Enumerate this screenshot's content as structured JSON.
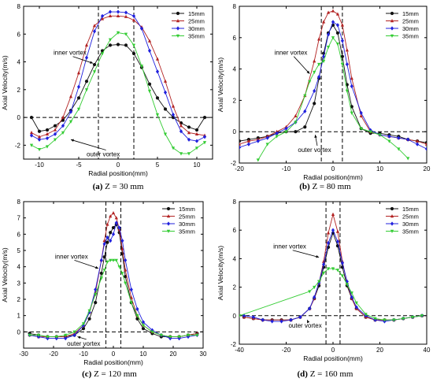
{
  "colors": {
    "15mm": "#111111",
    "25mm": "#b22222",
    "30mm": "#2020dd",
    "35mm": "#33cc33"
  },
  "chart_data": [
    {
      "type": "line",
      "caption_letter": "(a)",
      "caption_rest": " Z = 30 mm",
      "xlabel": "Radial position(mm)",
      "ylabel": "Axial Velocity(m/s)",
      "xlim": [
        -12,
        12
      ],
      "ylim": [
        -3,
        8
      ],
      "xticks": [
        -10,
        -5,
        0,
        5,
        10
      ],
      "yticks": [
        -2,
        0,
        2,
        4,
        6,
        8
      ],
      "vlines": [
        -2.5,
        2
      ],
      "legend": "top-right",
      "annotations": [
        {
          "text": "inner vortex",
          "x": -8.2,
          "y": 4.5,
          "ax": -3.2,
          "ay": 3.9
        },
        {
          "text": "outer vortex",
          "x": -4.0,
          "y": -2.8,
          "ax": -6.0,
          "ay": -1.6
        }
      ],
      "series": [
        {
          "name": "15mm",
          "marker": "circle",
          "x": [
            -11,
            -10,
            -9,
            -8,
            -7,
            -6,
            -5,
            -4,
            -3,
            -2,
            -1,
            0,
            1,
            2,
            3,
            4,
            5,
            6,
            7,
            8,
            9,
            10,
            11
          ],
          "y": [
            0,
            -1.0,
            -0.9,
            -0.6,
            -0.2,
            0.5,
            1.4,
            2.6,
            3.8,
            4.8,
            5.2,
            5.25,
            5.2,
            4.6,
            3.6,
            2.4,
            1.4,
            0.6,
            0.0,
            -0.4,
            -0.7,
            -0.9,
            0
          ]
        },
        {
          "name": "25mm",
          "marker": "triangle",
          "x": [
            -11,
            -10,
            -9,
            -8,
            -7,
            -6,
            -5,
            -4,
            -3,
            -2,
            -1,
            0,
            1,
            2,
            3,
            4,
            5,
            6,
            7,
            8,
            9,
            10,
            11
          ],
          "y": [
            -1.1,
            -1.4,
            -1.2,
            -0.9,
            0.0,
            1.5,
            3.2,
            5.2,
            6.6,
            7.1,
            7.3,
            7.3,
            7.25,
            7.0,
            6.5,
            5.5,
            4.2,
            2.6,
            0.8,
            -0.6,
            -1.1,
            -1.2,
            -1.3
          ]
        },
        {
          "name": "30mm",
          "marker": "diamond",
          "x": [
            -11,
            -10,
            -9,
            -8,
            -7,
            -6,
            -5,
            -4,
            -3,
            -2,
            -1,
            0,
            1,
            2,
            3,
            4,
            5,
            6,
            7,
            8,
            9,
            10,
            11
          ],
          "y": [
            -1.3,
            -1.6,
            -1.5,
            -1.2,
            -0.6,
            0.4,
            2.2,
            4.3,
            6.2,
            7.3,
            7.6,
            7.6,
            7.55,
            7.3,
            6.4,
            4.8,
            3.3,
            1.8,
            0.2,
            -1.0,
            -1.6,
            -1.7,
            -1.4
          ]
        },
        {
          "name": "35mm",
          "marker": "triangle-down",
          "x": [
            -11,
            -10,
            -9,
            -8,
            -7,
            -6,
            -5,
            -4,
            -3,
            -2,
            -1,
            0,
            1,
            2,
            3,
            4,
            5,
            6,
            7,
            8,
            9,
            10,
            11
          ],
          "y": [
            -2.0,
            -2.3,
            -2.1,
            -1.6,
            -1.1,
            -0.3,
            0.6,
            2.0,
            3.3,
            4.6,
            5.6,
            6.1,
            6.0,
            5.2,
            3.7,
            1.9,
            0.2,
            -1.2,
            -2.2,
            -2.6,
            -2.6,
            -2.2,
            -1.8
          ]
        }
      ]
    },
    {
      "type": "line",
      "caption_letter": "(b)",
      "caption_rest": " Z = 80 mm",
      "xlabel": "Radial position(mm)",
      "ylabel": "Axial Velocity(m/s)",
      "xlim": [
        -20,
        20
      ],
      "ylim": [
        -2,
        8
      ],
      "xticks": [
        -20,
        -10,
        0,
        10,
        20
      ],
      "yticks": [
        -2,
        0,
        2,
        4,
        6,
        8
      ],
      "vlines": [
        -2.5,
        2
      ],
      "legend": "top-right",
      "annotations": [
        {
          "text": "inner vortex",
          "x": -12.5,
          "y": 4.9,
          "ax": -5.0,
          "ay": 3.7
        },
        {
          "text": "outer vortex",
          "x": -7.5,
          "y": -1.3,
          "ax": -3.8,
          "ay": -0.2
        }
      ],
      "series": [
        {
          "name": "15mm",
          "marker": "circle",
          "x": [
            -20,
            -18,
            -16,
            -14,
            -12,
            -10,
            -8,
            -6,
            -4,
            -3,
            -2,
            -1,
            0,
            1,
            2,
            3,
            4,
            6,
            8,
            10,
            12,
            14,
            16,
            18,
            20
          ],
          "y": [
            -0.6,
            -0.5,
            -0.4,
            -0.3,
            -0.1,
            0.0,
            0.0,
            0.3,
            1.8,
            3.4,
            5.0,
            6.3,
            6.8,
            6.3,
            4.8,
            3.0,
            1.6,
            0.2,
            -0.1,
            -0.1,
            -0.2,
            -0.3,
            -0.5,
            -0.6,
            -0.7
          ]
        },
        {
          "name": "25mm",
          "marker": "triangle",
          "x": [
            -20,
            -18,
            -16,
            -14,
            -12,
            -10,
            -8,
            -6,
            -4,
            -3,
            -2,
            -1,
            0,
            1,
            2,
            3,
            4,
            6,
            8,
            10,
            12,
            14,
            16,
            18,
            20
          ],
          "y": [
            -0.8,
            -0.6,
            -0.5,
            -0.3,
            0.0,
            0.3,
            1.0,
            2.3,
            4.5,
            5.9,
            7.0,
            7.6,
            7.7,
            7.5,
            6.8,
            5.2,
            3.4,
            1.0,
            0.0,
            -0.2,
            -0.3,
            -0.4,
            -0.5,
            -0.6,
            -0.8
          ]
        },
        {
          "name": "30mm",
          "marker": "diamond",
          "x": [
            -20,
            -18,
            -16,
            -14,
            -12,
            -10,
            -8,
            -6,
            -4,
            -3,
            -2,
            -1,
            0,
            1,
            2,
            3,
            4,
            6,
            8,
            10,
            12,
            14,
            16,
            18,
            20
          ],
          "y": [
            -1.0,
            -0.8,
            -0.6,
            -0.4,
            -0.1,
            0.2,
            0.6,
            1.3,
            2.6,
            3.5,
            4.8,
            6.2,
            7.0,
            6.8,
            5.8,
            4.3,
            2.9,
            1.2,
            0.1,
            -0.2,
            -0.3,
            -0.4,
            -0.5,
            -0.8,
            -1.1
          ]
        },
        {
          "name": "35mm",
          "marker": "triangle-down",
          "x": [
            -16,
            -14,
            -12,
            -10,
            -8,
            -6,
            -5,
            -4,
            -3,
            -2,
            -1,
            0,
            1,
            2,
            3,
            4,
            6,
            8,
            10,
            12,
            14,
            16
          ],
          "y": [
            -1.8,
            -0.8,
            -0.3,
            0.0,
            0.6,
            2.3,
            3.2,
            3.8,
            4.3,
            4.5,
            5.4,
            6.0,
            5.6,
            4.3,
            2.6,
            1.2,
            0.2,
            0.0,
            -0.2,
            -0.6,
            -1.1,
            -1.7
          ]
        }
      ]
    },
    {
      "type": "line",
      "caption_letter": "(c)",
      "caption_rest": " Z = 120 mm",
      "xlabel": "Radial position(mm)",
      "ylabel": "Axial Velocity(m/s)",
      "xlim": [
        -30,
        30
      ],
      "ylim": [
        -1,
        8
      ],
      "xticks": [
        -30,
        -20,
        -10,
        0,
        10,
        20,
        30
      ],
      "yticks": [
        0,
        1,
        2,
        3,
        4,
        5,
        6,
        7,
        8
      ],
      "vlines": [
        -2.5,
        2.5
      ],
      "legend": "top-right",
      "annotations": [
        {
          "text": "inner vortex",
          "x": -19.5,
          "y": 4.5,
          "ax": -5.0,
          "ay": 3.9
        },
        {
          "text": "outer vortex",
          "x": -15.5,
          "y": -0.85,
          "ax": -12.0,
          "ay": -0.3
        }
      ],
      "series": [
        {
          "name": "15mm",
          "marker": "circle",
          "x": [
            -28,
            -25,
            -22,
            -19,
            -16,
            -13,
            -10,
            -8,
            -6,
            -4,
            -3,
            -2,
            -1,
            0,
            1,
            2,
            3,
            4,
            6,
            8,
            10,
            13,
            16,
            19,
            22,
            25,
            28
          ],
          "y": [
            -0.1,
            -0.2,
            -0.3,
            -0.3,
            -0.3,
            -0.2,
            0.2,
            0.8,
            1.8,
            3.6,
            4.6,
            5.5,
            6.1,
            6.4,
            6.6,
            6.1,
            4.8,
            3.4,
            1.8,
            0.8,
            0.2,
            -0.1,
            -0.3,
            -0.3,
            -0.3,
            -0.2,
            -0.1
          ]
        },
        {
          "name": "25mm",
          "marker": "triangle",
          "x": [
            -28,
            -25,
            -22,
            -19,
            -16,
            -13,
            -10,
            -8,
            -6,
            -4,
            -3,
            -2,
            -1,
            0,
            1,
            2,
            3,
            4,
            6,
            8,
            10,
            13,
            16,
            19,
            22,
            25,
            28
          ],
          "y": [
            -0.2,
            -0.3,
            -0.3,
            -0.3,
            -0.3,
            -0.1,
            0.4,
            1.2,
            2.4,
            4.4,
            5.6,
            6.6,
            7.1,
            7.3,
            7.0,
            6.3,
            5.1,
            3.8,
            2.1,
            1.0,
            0.4,
            0.0,
            -0.2,
            -0.3,
            -0.3,
            -0.2,
            -0.1
          ]
        },
        {
          "name": "30mm",
          "marker": "diamond",
          "x": [
            -28,
            -25,
            -22,
            -19,
            -16,
            -13,
            -10,
            -8,
            -6,
            -4,
            -3,
            -2,
            -1,
            0,
            1,
            2,
            3,
            4,
            6,
            8,
            10,
            13,
            16,
            19,
            22,
            25,
            28
          ],
          "y": [
            -0.2,
            -0.3,
            -0.4,
            -0.4,
            -0.4,
            -0.2,
            0.4,
            1.2,
            2.6,
            4.4,
            5.4,
            5.8,
            5.6,
            6.0,
            6.7,
            6.4,
            5.6,
            4.4,
            2.6,
            1.4,
            0.6,
            0.1,
            -0.2,
            -0.4,
            -0.4,
            -0.3,
            -0.2
          ]
        },
        {
          "name": "35mm",
          "marker": "triangle-down",
          "x": [
            -28,
            -25,
            -22,
            -19,
            -16,
            -13,
            -10,
            -8,
            -6,
            -4,
            -3,
            -2,
            -1,
            0,
            1,
            2,
            3,
            4,
            6,
            8,
            10,
            13,
            16,
            19,
            22,
            25,
            28
          ],
          "y": [
            -0.2,
            -0.2,
            -0.3,
            -0.3,
            -0.2,
            0.0,
            0.5,
            1.3,
            2.3,
            3.3,
            3.8,
            4.3,
            4.4,
            4.4,
            4.4,
            4.0,
            3.6,
            3.0,
            1.8,
            1.0,
            0.4,
            0.0,
            -0.2,
            -0.3,
            -0.3,
            -0.2,
            -0.2
          ]
        }
      ]
    },
    {
      "type": "line",
      "caption_letter": "(d)",
      "caption_rest": " Z = 160 mm",
      "xlabel": "Radial position(mm)",
      "ylabel": "Axial Velocity(m/s)",
      "xlim": [
        -40,
        40
      ],
      "ylim": [
        -2,
        8
      ],
      "xticks": [
        -40,
        -20,
        0,
        20,
        40
      ],
      "yticks": [
        -2,
        0,
        2,
        4,
        6,
        8
      ],
      "vlines": [
        -3,
        3
      ],
      "legend": "top-right",
      "annotations": [
        {
          "text": "inner vortex",
          "x": -25.5,
          "y": 4.7,
          "ax": -6.0,
          "ay": 4.1
        },
        {
          "text": "outer vortex",
          "x": -19.0,
          "y": -0.85,
          "ax": -11.0,
          "ay": -0.3
        }
      ],
      "series": [
        {
          "name": "15mm",
          "marker": "circle",
          "x": [
            -38,
            -34,
            -30,
            -26,
            -22,
            -18,
            -14,
            -10,
            -8,
            -6,
            -4,
            -2,
            0,
            2,
            4,
            6,
            8,
            10,
            14,
            18,
            22,
            26,
            30,
            34,
            38
          ],
          "y": [
            -0.1,
            -0.2,
            -0.3,
            -0.3,
            -0.3,
            -0.3,
            -0.1,
            0.5,
            1.2,
            2.1,
            3.4,
            4.8,
            5.8,
            4.9,
            3.4,
            2.1,
            1.2,
            0.5,
            -0.1,
            -0.3,
            -0.3,
            -0.3,
            -0.2,
            -0.1,
            0.0
          ]
        },
        {
          "name": "25mm",
          "marker": "triangle",
          "x": [
            -38,
            -34,
            -30,
            -26,
            -22,
            -18,
            -14,
            -10,
            -8,
            -6,
            -4,
            -2,
            0,
            2,
            4,
            6,
            8,
            10,
            14,
            18,
            22,
            26,
            30,
            34,
            38
          ],
          "y": [
            -0.1,
            -0.2,
            -0.3,
            -0.3,
            -0.3,
            -0.3,
            -0.1,
            0.5,
            1.2,
            2.3,
            3.8,
            5.8,
            7.1,
            5.9,
            3.8,
            2.3,
            1.2,
            0.5,
            -0.1,
            -0.3,
            -0.3,
            -0.3,
            -0.2,
            -0.1,
            0.0
          ]
        },
        {
          "name": "30mm",
          "marker": "diamond",
          "x": [
            -38,
            -34,
            -30,
            -26,
            -22,
            -18,
            -14,
            -10,
            -8,
            -6,
            -4,
            -2,
            0,
            2,
            4,
            6,
            8,
            10,
            14,
            18,
            22,
            26,
            30,
            34,
            38
          ],
          "y": [
            0.0,
            -0.1,
            -0.3,
            -0.4,
            -0.4,
            -0.3,
            -0.1,
            0.5,
            1.3,
            2.3,
            3.6,
            5.1,
            6.0,
            5.2,
            3.7,
            2.4,
            1.3,
            0.6,
            0.0,
            -0.3,
            -0.4,
            -0.3,
            -0.2,
            -0.1,
            0.0
          ]
        },
        {
          "name": "35mm",
          "marker": "triangle-down",
          "x": [
            -40,
            -10,
            -8,
            -6,
            -4,
            -2,
            0,
            2,
            4,
            6,
            8,
            10,
            14,
            18,
            22,
            26,
            30,
            34,
            38
          ],
          "y": [
            0.0,
            1.7,
            2.0,
            2.4,
            3.0,
            3.3,
            3.3,
            3.2,
            2.8,
            2.2,
            1.6,
            0.9,
            0.1,
            -0.2,
            -0.3,
            -0.3,
            -0.2,
            -0.1,
            0.0
          ]
        }
      ]
    }
  ]
}
